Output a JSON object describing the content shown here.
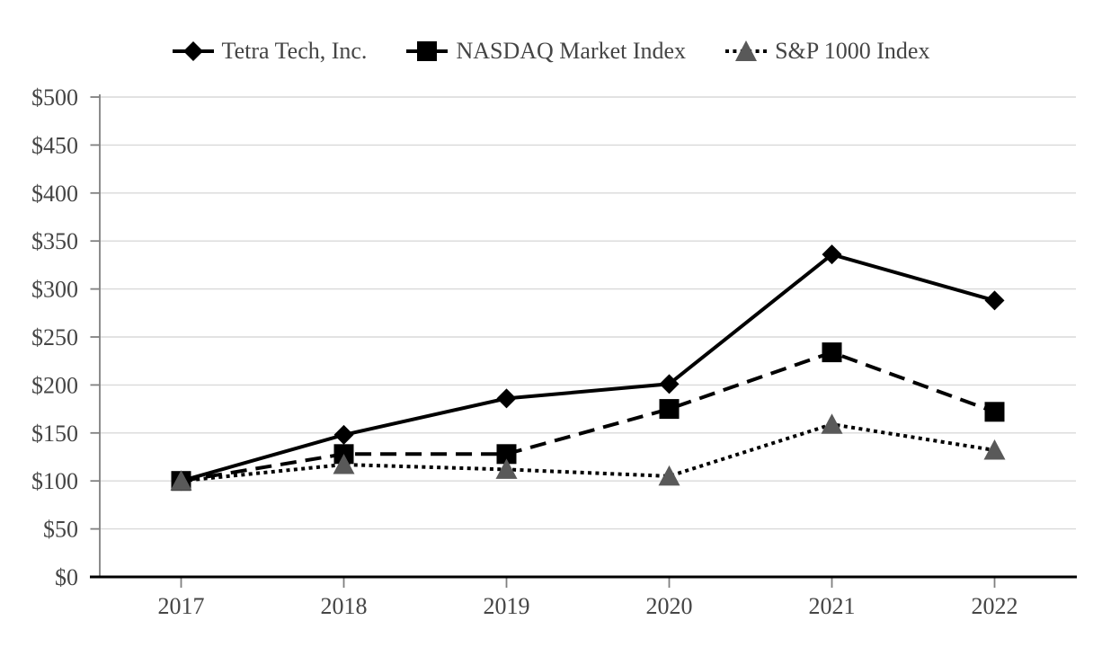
{
  "chart_data": {
    "type": "line",
    "categories": [
      "2017",
      "2018",
      "2019",
      "2020",
      "2021",
      "2022"
    ],
    "series": [
      {
        "name": "Tetra Tech, Inc.",
        "marker": "diamond",
        "line_style": "solid",
        "line_color": "#000000",
        "marker_color": "#000000",
        "values": [
          100,
          148,
          186,
          201,
          336,
          288
        ]
      },
      {
        "name": "NASDAQ Market Index",
        "marker": "square",
        "line_style": "dashed",
        "line_color": "#000000",
        "marker_color": "#000000",
        "values": [
          100,
          128,
          128,
          175,
          234,
          172
        ]
      },
      {
        "name": "S&P 1000 Index",
        "marker": "triangle",
        "line_style": "dotted",
        "line_color": "#000000",
        "marker_color": "#595959",
        "values": [
          100,
          117,
          112,
          105,
          159,
          132
        ]
      }
    ],
    "ylim": [
      0,
      500
    ],
    "y_ticks": [
      0,
      50,
      100,
      150,
      200,
      250,
      300,
      350,
      400,
      450,
      500
    ],
    "y_tick_labels": [
      "$0",
      "$50",
      "$100",
      "$150",
      "$200",
      "$250",
      "$300",
      "$350",
      "$400",
      "$450",
      "$500"
    ],
    "grid": "horizontal-only",
    "legend_position": "top-center",
    "styles": {
      "gridline_color": "#d9d9d9",
      "y_axis_color": "#808080",
      "x_axis_color": "#000000",
      "text_color": "#454545",
      "background": "#ffffff"
    }
  }
}
